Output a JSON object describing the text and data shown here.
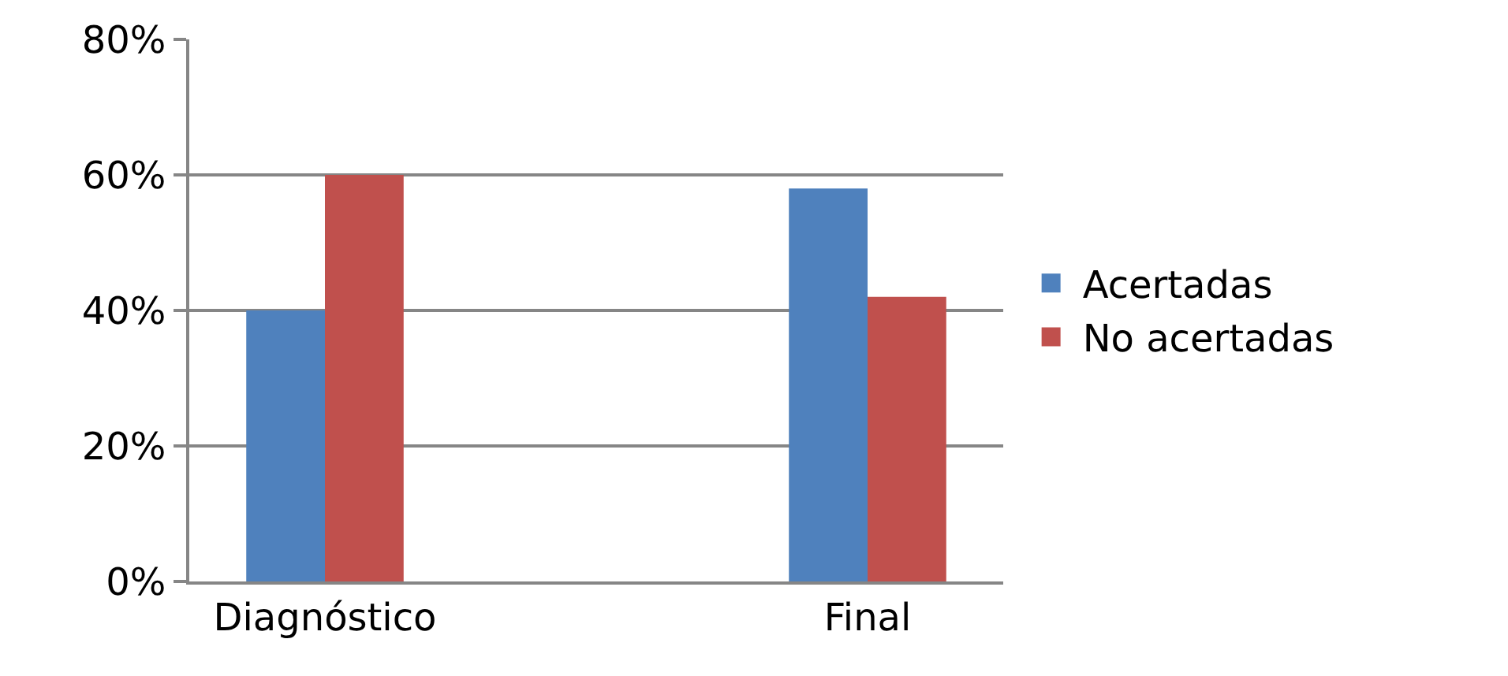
{
  "chart_data": {
    "type": "bar",
    "categories": [
      "Diagnóstico",
      null,
      "Final"
    ],
    "series": [
      {
        "name": "Acertadas",
        "color": "#4f81bd",
        "values": [
          40,
          null,
          58
        ]
      },
      {
        "name": "No acertadas",
        "color": "#c0504d",
        "values": [
          60,
          null,
          42
        ]
      }
    ],
    "ylim": [
      0,
      80
    ],
    "yticks": [
      {
        "value": 0,
        "label": "0%"
      },
      {
        "value": 20,
        "label": "20%"
      },
      {
        "value": 40,
        "label": "40%"
      },
      {
        "value": 60,
        "label": "60%"
      },
      {
        "value": 80,
        "label": "80%"
      }
    ],
    "grid": "y",
    "legend": "right"
  }
}
